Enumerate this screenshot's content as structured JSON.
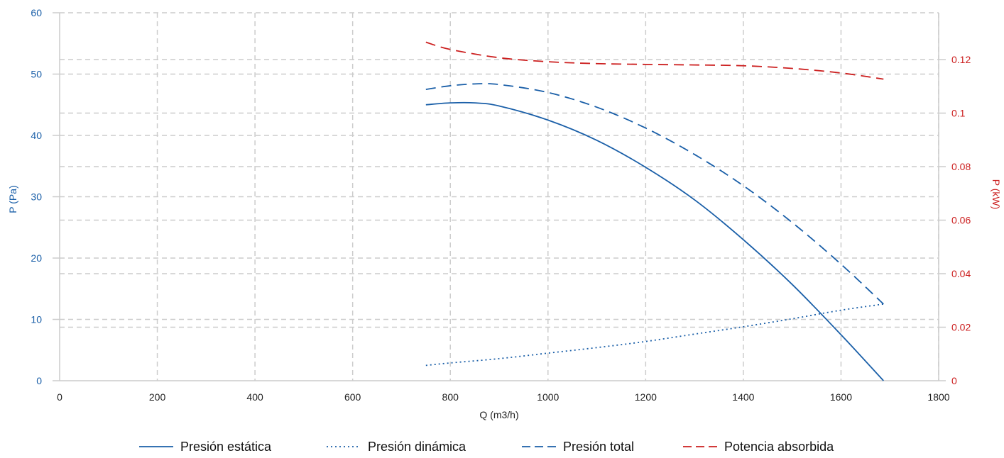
{
  "chart_data": {
    "type": "line",
    "title": "",
    "xlabel": "Q (m3/h)",
    "ylabel_left": "P (Pa)",
    "ylabel_right": "P (kW)",
    "xlim": [
      0,
      1800
    ],
    "ylim_left": [
      0,
      60
    ],
    "ylim_right": [
      0,
      0.1375
    ],
    "xticks": [
      0,
      200,
      400,
      600,
      800,
      1000,
      1200,
      1400,
      1600,
      1800
    ],
    "yticks_left": [
      0,
      10,
      20,
      30,
      40,
      50,
      60
    ],
    "yticks_right": [
      0,
      0.02,
      0.04,
      0.06,
      0.08,
      0.1,
      0.12
    ],
    "grid": true,
    "legend_position": "bottom",
    "colors": {
      "pressure": "#1a5fa8",
      "power": "#cc1f1f",
      "grid": "#cccccc"
    },
    "series": [
      {
        "name": "Presión estática",
        "axis": "left",
        "style": "solid",
        "color": "#1a5fa8",
        "x": [
          750,
          800,
          850,
          900,
          1000,
          1100,
          1200,
          1300,
          1400,
          1500,
          1600,
          1687
        ],
        "y": [
          45.0,
          45.3,
          45.3,
          44.8,
          42.5,
          39.2,
          34.8,
          29.5,
          23.0,
          15.7,
          7.5,
          0.0
        ]
      },
      {
        "name": "Presión dinámica",
        "axis": "left",
        "style": "dotted",
        "color": "#1a5fa8",
        "x": [
          750,
          800,
          900,
          1000,
          1100,
          1200,
          1300,
          1400,
          1500,
          1600,
          1687
        ],
        "y": [
          2.5,
          2.9,
          3.6,
          4.5,
          5.4,
          6.4,
          7.6,
          8.8,
          10.1,
          11.5,
          12.5
        ]
      },
      {
        "name": "Presión total",
        "axis": "left",
        "style": "dashed",
        "color": "#1a5fa8",
        "x": [
          750,
          800,
          850,
          900,
          1000,
          1100,
          1200,
          1300,
          1400,
          1500,
          1600,
          1687
        ],
        "y": [
          47.5,
          48.1,
          48.4,
          48.3,
          47.0,
          44.6,
          41.2,
          36.9,
          31.8,
          25.8,
          19.0,
          12.5
        ]
      },
      {
        "name": "Potencia absorbida",
        "axis": "right",
        "style": "dashed",
        "color": "#cc1f1f",
        "x": [
          750,
          800,
          900,
          1000,
          1100,
          1200,
          1300,
          1400,
          1500,
          1600,
          1687
        ],
        "y": [
          0.1265,
          0.1238,
          0.1207,
          0.1192,
          0.1185,
          0.1182,
          0.118,
          0.1177,
          0.1167,
          0.115,
          0.1127
        ]
      }
    ]
  }
}
